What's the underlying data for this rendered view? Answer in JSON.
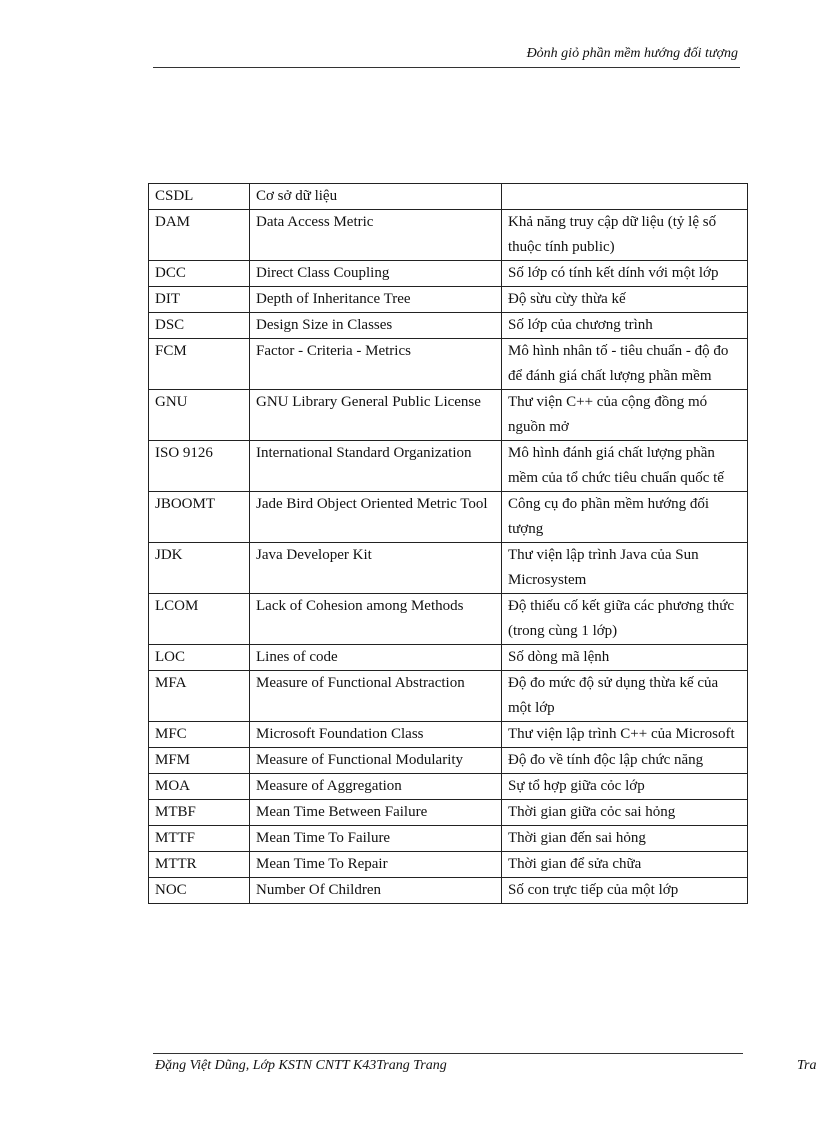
{
  "header": {
    "title": "Đỏnh giỏ phần mềm  hướng đối tượng"
  },
  "rows": [
    [
      "CSDL",
      "Cơ sở dữ liệu",
      ""
    ],
    [
      "DAM",
      "Data Access Metric",
      "Khả năng truy cập dữ liệu (tỷ lệ số thuộc tính public)"
    ],
    [
      "DCC",
      "Direct Class Coupling",
      "Số lớp có tính kết dính với một lớp"
    ],
    [
      "DIT",
      "Depth of Inheritance Tree",
      "Độ sừu cừy thừa kế"
    ],
    [
      "DSC",
      "Design Size in Classes",
      "Số lớp của chương trình"
    ],
    [
      "FCM",
      "Factor - Criteria - Metrics",
      "Mô hình nhân tố - tiêu chuẩn - độ đo để đánh giá chất lượng phần mềm"
    ],
    [
      "GNU",
      "GNU Library General Public License",
      "Thư viện C++ của cộng đồng mó nguồn mở"
    ],
    [
      "ISO 9126",
      "International Standard Organization",
      "Mô hình đánh giá chất lượng phần mềm của tổ chức tiêu chuẩn quốc tế"
    ],
    [
      "JBOOMT",
      "Jade Bird Object Oriented Metric Tool",
      "Công cụ đo phần mềm hướng đối tượng"
    ],
    [
      "JDK",
      "Java Developer Kit",
      "Thư viện lập trình Java của Sun Microsystem"
    ],
    [
      "LCOM",
      "Lack of Cohesion among Methods",
      "Độ thiếu cố kết giữa các phương thức (trong cùng 1 lớp)"
    ],
    [
      "LOC",
      "Lines of code",
      "Số dòng mã lệnh"
    ],
    [
      "MFA",
      "Measure of Functional Abstraction",
      "Độ đo mức độ sử dụng thừa kế của một lớp"
    ],
    [
      "MFC",
      "Microsoft Foundation  Class",
      "Thư viện lập trình C++ của Microsoft"
    ],
    [
      "MFM",
      "Measure of Functional Modularity",
      "Độ đo về tính độc lập chức năng"
    ],
    [
      "MOA",
      "Measure of Aggregation",
      "Sự tổ hợp giữa cỏc lớp"
    ],
    [
      "MTBF",
      "Mean Time Between Failure",
      "Thời gian giữa cỏc sai hỏng"
    ],
    [
      "MTTF",
      "Mean Time To Failure",
      "Thời gian đến sai hỏng"
    ],
    [
      "MTTR",
      "Mean Time To Repair",
      "Thời gian để sửa chữa"
    ],
    [
      "NOC",
      "Number Of Children",
      "Số con trực tiếp của một lớp"
    ]
  ],
  "footer": {
    "author": "Đặng Việt Dũng, Lớp KSTN CNTT K43Trang Trang",
    "page_label": "Tra"
  }
}
